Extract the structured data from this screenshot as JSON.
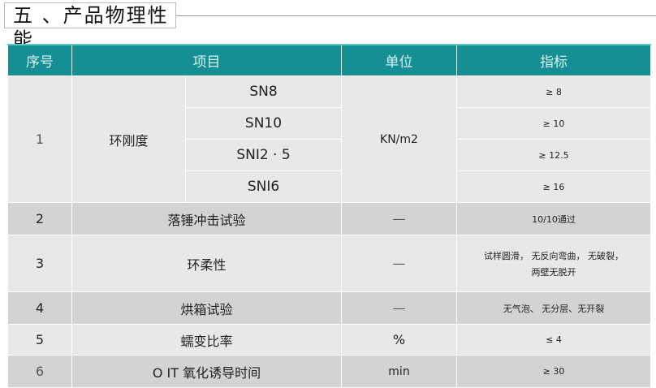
{
  "section_title": "五 、产品物理性能",
  "headers": [
    "序号",
    "项目",
    "单位",
    "指标"
  ],
  "ring": {
    "no": "1",
    "name": "环刚度",
    "unit": "KN/m2",
    "subs": [
      {
        "grade": "SN8",
        "value": "≥ 8"
      },
      {
        "grade": "SN10",
        "value": "≥ 10"
      },
      {
        "grade": "SNI2 · 5",
        "value": "≥ 12.5"
      },
      {
        "grade": "SNI6",
        "value": "≥ 16"
      }
    ]
  },
  "rows": [
    {
      "no": "2",
      "item": "落锤冲击试验",
      "unit": "—",
      "value": "10/10通过"
    },
    {
      "no": "3",
      "item": "环柔性",
      "unit": "—",
      "value": "试样圆滑， 无反向弯曲， 无破裂，",
      "value2": "两壁无脱开"
    },
    {
      "no": "4",
      "item": "烘箱试验",
      "unit": "—",
      "value": "无气泡、 无分层、无开裂"
    },
    {
      "no": "5",
      "item": "蠕变比率",
      "unit": "%",
      "value": "≤ 4"
    },
    {
      "no": "6",
      "item": "O IT 氧化诱导时间",
      "unit": "min",
      "value": "≥ 30"
    }
  ]
}
